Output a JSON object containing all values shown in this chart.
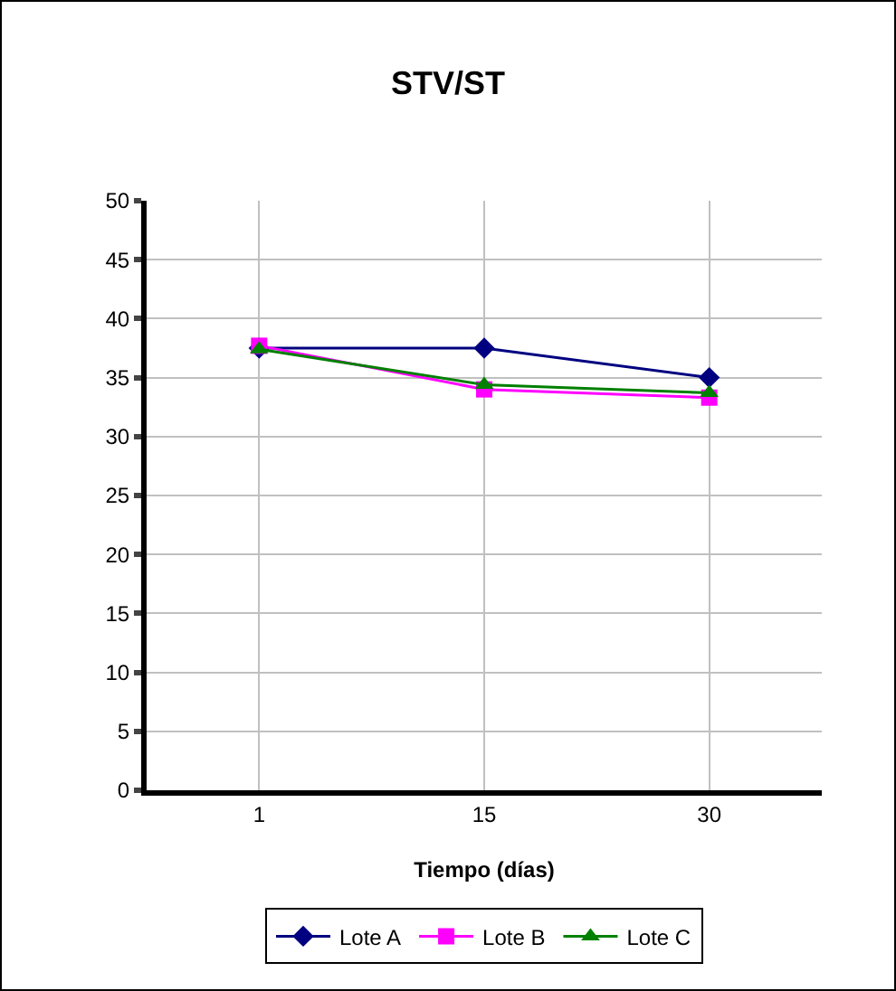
{
  "chart_data": {
    "type": "line",
    "title": "STV/ST",
    "xlabel": "Tiempo (días)",
    "categories": [
      "1",
      "15",
      "30"
    ],
    "ylim": [
      0,
      50
    ],
    "yticks": [
      0,
      5,
      10,
      15,
      20,
      25,
      30,
      35,
      40,
      45,
      50
    ],
    "grid": true,
    "legend": "bottom",
    "series": [
      {
        "name": "Lote A",
        "color": "#000080",
        "marker": "diamond",
        "values": [
          37.5,
          37.5,
          35
        ]
      },
      {
        "name": "Lote B",
        "color": "#ff00ff",
        "marker": "square",
        "values": [
          37.7,
          34,
          33.3
        ]
      },
      {
        "name": "Lote C",
        "color": "#008000",
        "marker": "triangle",
        "values": [
          37.4,
          34.4,
          33.7
        ]
      }
    ]
  }
}
